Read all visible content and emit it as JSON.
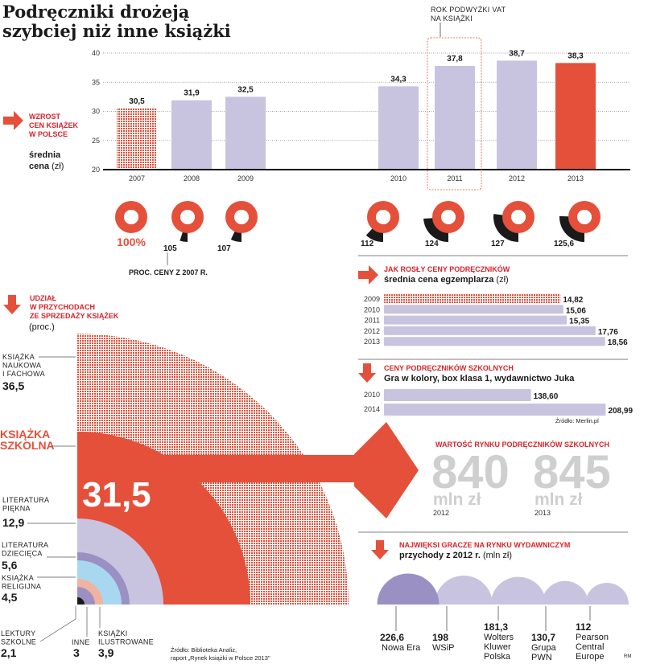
{
  "title": [
    "Podręczniki drożeją",
    "szybciej niż inne książki"
  ],
  "colors": {
    "red": "#e4503a",
    "lilac": "#c8c4e0",
    "dark_lilac": "#9b90c4",
    "black": "#1a1a1a",
    "grey_numbers": "#cfcfcf",
    "heading_red": "#d8232a"
  },
  "price_section": {
    "heading": [
      "WZROST",
      "CEN KSIĄŻEK",
      "W POLSCE"
    ],
    "subtitle_bold": [
      "średnia",
      "cena"
    ],
    "subtitle_unit": "(zł)",
    "annotation": [
      "ROK PODWYŻKI VAT",
      "NA KSIĄŻKI"
    ],
    "pct_caption": "PROC. CENY Z 2007 R.",
    "pct_labels": [
      "100%",
      "105",
      "107",
      "112",
      "124",
      "127",
      "125,6"
    ]
  },
  "chart_data": [
    {
      "type": "bar",
      "categories": [
        "2007",
        "2008",
        "2009",
        "2010",
        "2011",
        "2012",
        "2013"
      ],
      "values": [
        30.5,
        31.9,
        32.5,
        34.3,
        37.8,
        38.7,
        38.3
      ],
      "value_labels": [
        "30,5",
        "31,9",
        "32,5",
        "34,3",
        "37,8",
        "38,7",
        "38,3"
      ],
      "ylim": [
        20,
        40
      ],
      "yticks": [
        "20",
        "25",
        "30",
        "35",
        "40"
      ],
      "grid": true,
      "ylabel": "średnia cena (zł)",
      "highlight": {
        "2007": "dotted red",
        "2013": "red",
        "2011": "boxed"
      }
    },
    {
      "type": "pie",
      "note": "donuts: price index vs 2007",
      "categories": [
        "2007",
        "2008",
        "2009",
        "2010",
        "2011",
        "2012",
        "2013"
      ],
      "values": [
        100,
        105,
        107,
        112,
        124,
        127,
        125.6
      ]
    },
    {
      "type": "bar",
      "title": "JAK ROSŁY CENY PODRĘCZNIKÓW",
      "subtitle": "średnia cena egzemplarza",
      "unit": "(zł)",
      "orientation": "horizontal",
      "categories": [
        "2009",
        "2010",
        "2011",
        "2012",
        "2013"
      ],
      "values": [
        14.82,
        15.06,
        15.35,
        17.76,
        18.56
      ],
      "value_labels": [
        "14,82",
        "15,06",
        "15,35",
        "17,76",
        "18,56"
      ]
    },
    {
      "type": "bar",
      "title": "CENY PODRĘCZNIKÓW SZKOLNYCH",
      "subtitle": "Gra w kolory, box klasa 1, wydawnictwo Juka",
      "orientation": "horizontal",
      "categories": [
        "2010",
        "2014"
      ],
      "values": [
        138.6,
        208.99
      ],
      "value_labels": [
        "138,60",
        "208,99"
      ],
      "source": "Źródło: Merlin.pl"
    },
    {
      "type": "pie",
      "title": [
        "UDZIAŁ",
        "W PRZYCHODACH",
        "ZE SPRZEDAŻY KSIĄŻEK"
      ],
      "unit": "(proc.)",
      "style": "nested quarter circles",
      "categories": [
        "KSIĄŻKA NAUKOWA I FACHOWA",
        "KSIĄŻKA SZKOLNA",
        "LITERATURA PIĘKNA",
        "LITERATURA DZIECIĘCA",
        "KSIĄŻKA RELIGIJNA",
        "KSIĄŻKI ILUSTROWANE",
        "INNE",
        "LEKTURY SZKOLNE"
      ],
      "values": [
        36.5,
        31.5,
        12.9,
        5.6,
        4.5,
        3.9,
        3,
        2.1
      ],
      "value_labels": [
        "36,5",
        "31,5",
        "12,9",
        "5,6",
        "4,5",
        "3,9",
        "3",
        "2,1"
      ],
      "label_lines": [
        [
          "KSIĄŻKA",
          "NAUKOWA",
          "I FACHOWA"
        ],
        [
          "KSIĄŻKA",
          "SZKOLNA"
        ],
        [
          "LITERATURA",
          "PIĘKNA"
        ],
        [
          "LITERATURA",
          "DZIECIĘCA"
        ],
        [
          "KSIĄŻKA",
          "RELIGIJNA"
        ],
        [
          "KSIĄŻKI",
          "ILUSTROWANE"
        ],
        [
          "INNE"
        ],
        [
          "LEKTURY",
          "SZKOLNE"
        ]
      ],
      "source": [
        "Źródło: Biblioteka Analiz,",
        "raport „Rynek książki w Polsce 2013\""
      ]
    },
    {
      "type": "table",
      "title": "WARTOŚĆ RYNKU PODRĘCZNIKÓW SZKOLNYCH",
      "categories": [
        "2012",
        "2013"
      ],
      "values": [
        840,
        845
      ],
      "unit": "mln zł"
    },
    {
      "type": "bar",
      "style": "proportional semicircles",
      "title": "NAJWIĘKSI GRACZE NA RYNKU WYDAWNICZYM",
      "subtitle": "przychody z 2012 r.",
      "unit": "(mln zł)",
      "categories": [
        [
          "Nowa Era"
        ],
        [
          "WSiP"
        ],
        [
          "Wolters",
          "Kluwer",
          "Polska"
        ],
        [
          "Grupa",
          "PWN"
        ],
        [
          "Pearson",
          "Central",
          "Europe"
        ]
      ],
      "values": [
        226.6,
        198,
        181.3,
        130.7,
        112
      ],
      "value_labels": [
        "226,6",
        "198",
        "181,3",
        "130,7",
        "112"
      ]
    }
  ],
  "credit": "RM"
}
